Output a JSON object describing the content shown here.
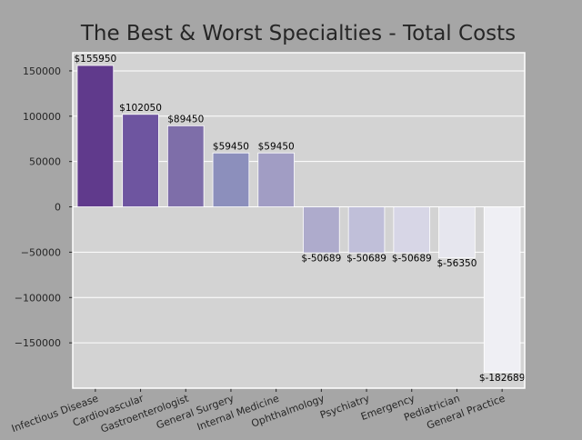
{
  "chart_data": {
    "type": "bar",
    "title": "The Best & Worst Specialties - Total Costs",
    "xlabel": "",
    "ylabel": "",
    "categories": [
      "Infectious Disease",
      "Cardiovascular",
      "Gastroenterologist",
      "General Surgery",
      "Internal Medicine",
      "Ophthalmology",
      "Psychiatry",
      "Emergency",
      "Pediatrician",
      "General Practice"
    ],
    "values": [
      155950,
      102050,
      89450,
      59450,
      59450,
      -50689,
      -50689,
      -50689,
      -56350,
      -182689
    ],
    "data_labels": [
      "$155950",
      "$102050",
      "$89450",
      "$59450",
      "$59450",
      "$-50689",
      "$-50689",
      "$-50689",
      "$-56350",
      "$-182689"
    ],
    "bar_colors": [
      "#603a8c",
      "#6e55a0",
      "#7e6ea9",
      "#8c8fbc",
      "#a19dc4",
      "#aeabcc",
      "#c0bfd9",
      "#d7d6e6",
      "#e6e6ee",
      "#efeff4"
    ],
    "ylim": [
      -200000,
      170000
    ],
    "yticks": [
      150000,
      100000,
      50000,
      0,
      -50000,
      -100000,
      -150000
    ],
    "ytick_labels": [
      "150000",
      "100000",
      "50000",
      "0",
      "−50000",
      "−100000",
      "−150000"
    ],
    "grid": true,
    "legend": "none",
    "colors": {
      "figure_background": "#a6a6a6",
      "axes_background": "#d3d3d3",
      "grid": "#ffffff"
    }
  }
}
